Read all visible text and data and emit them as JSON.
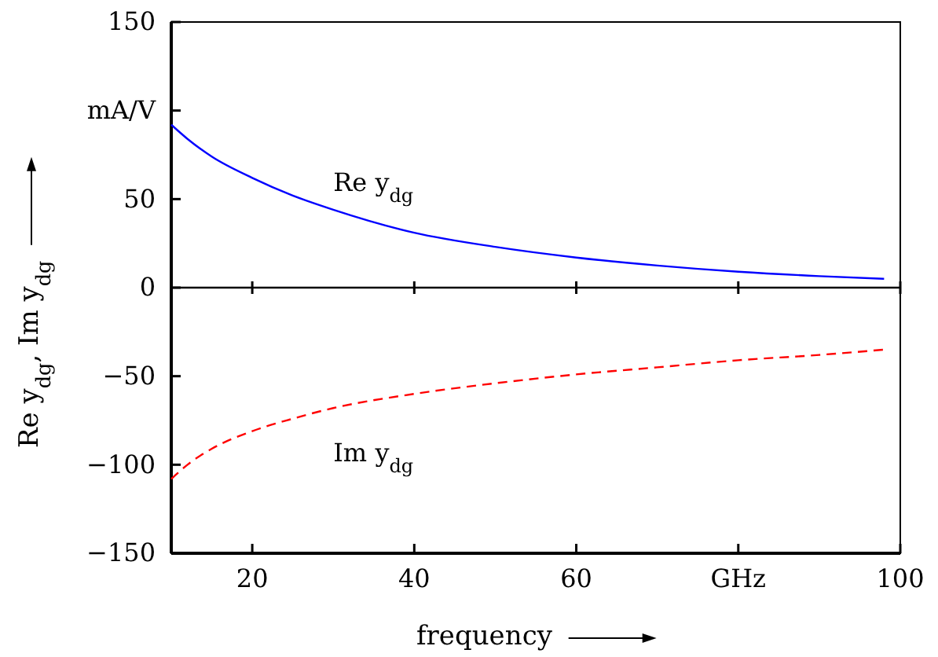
{
  "chart_data": {
    "type": "line",
    "xlabel": "frequency",
    "ylabel": "Re y$_{dg}$, Im y$_{dg}$",
    "x": [
      10,
      12,
      15,
      20,
      25,
      30,
      40,
      50,
      60,
      70,
      80,
      90,
      98
    ],
    "xlim": [
      10,
      100
    ],
    "xticks": [
      20,
      40,
      60,
      {
        "value": 80,
        "label": "GHz"
      },
      100
    ],
    "ylim": [
      -150,
      150
    ],
    "yticks": [
      -150,
      -100,
      -50,
      0,
      50,
      {
        "value": 100,
        "label": "mA/V"
      },
      150
    ],
    "series": [
      {
        "name": "Re y$_{dg}$",
        "color": "#0000ff",
        "line_style": "solid",
        "values": [
          92,
          84,
          74,
          62,
          52,
          44,
          31,
          23,
          17,
          12.5,
          9,
          6.5,
          5
        ]
      },
      {
        "name": "Im y$_{dg}$",
        "color": "#ff0000",
        "line_style": "dashed",
        "values": [
          -108,
          -100,
          -91,
          -81,
          -74,
          -68,
          -60,
          -54,
          -49,
          -45,
          -41,
          -38,
          -35
        ]
      }
    ],
    "ref_lines": [
      {
        "axis": "y",
        "value": 0
      }
    ],
    "grid": false,
    "legend": false
  }
}
